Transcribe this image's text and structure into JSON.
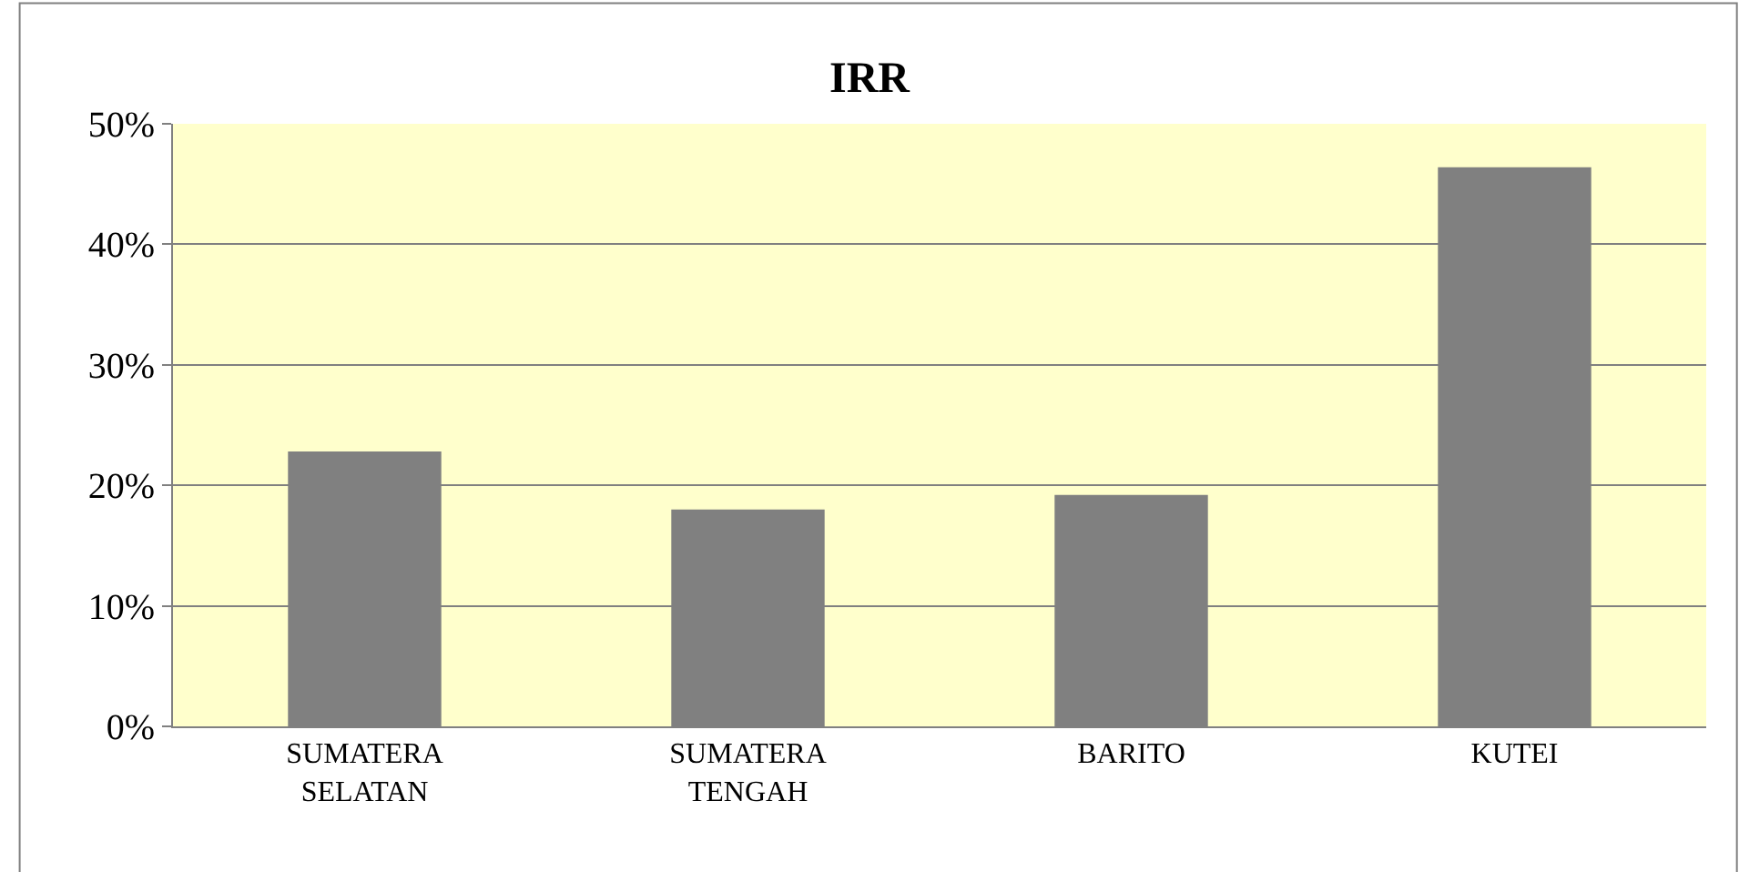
{
  "chart_data": {
    "type": "bar",
    "title": "IRR",
    "categories": [
      "SUMATERA SELATAN",
      "SUMATERA TENGAH",
      "BARITO",
      "KUTEI"
    ],
    "values": [
      22.8,
      18.0,
      19.2,
      46.4
    ],
    "color": "#808080",
    "ylim": [
      0,
      50
    ],
    "yticks": [
      {
        "value": 0,
        "label": "0%"
      },
      {
        "value": 10,
        "label": "10%"
      },
      {
        "value": 20,
        "label": "20%"
      },
      {
        "value": 30,
        "label": "30%"
      },
      {
        "value": 40,
        "label": "40%"
      },
      {
        "value": 50,
        "label": "50%"
      }
    ],
    "grid": "y",
    "legend": false
  }
}
